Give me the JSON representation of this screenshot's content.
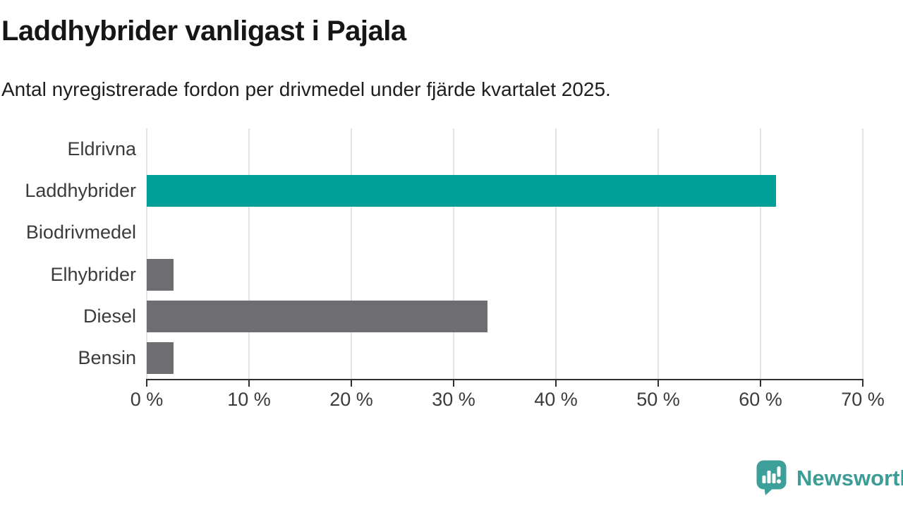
{
  "header": {
    "title": "Laddhybrider vanligast i Pajala",
    "subtitle": "Antal nyregistrerade fordon per drivmedel under fjärde kvartalet 2025."
  },
  "chart_data": {
    "type": "bar",
    "orientation": "horizontal",
    "title": "Laddhybrider vanligast i Pajala",
    "subtitle": "Antal nyregistrerade fordon per drivmedel under fjärde kvartalet 2025.",
    "categories": [
      "Eldrivna",
      "Laddhybrider",
      "Biodrivmedel",
      "Elhybrider",
      "Diesel",
      "Bensin"
    ],
    "values": [
      0,
      61.5,
      0,
      2.6,
      33.3,
      2.6
    ],
    "unit": "%",
    "xlim": [
      0,
      70
    ],
    "xticks": [
      0,
      10,
      20,
      30,
      40,
      50,
      60,
      70
    ],
    "xtick_labels": [
      "0 %",
      "10 %",
      "20 %",
      "30 %",
      "40 %",
      "50 %",
      "60 %",
      "70 %"
    ],
    "bar_colors": [
      "#6d6d72",
      "#00a099",
      "#6d6d72",
      "#6d6d72",
      "#6d6d72",
      "#6d6d72"
    ],
    "highlight_category": "Laddhybrider",
    "highlight_color": "#00a099",
    "default_color": "#6d6d72",
    "grid": true,
    "legend": false,
    "ylabel": "",
    "xlabel": ""
  },
  "footer": {
    "brand": "Newsworthy",
    "brand_color": "#3c9c96",
    "logo_icon": "bar-chart-speech-bubble-icon"
  }
}
